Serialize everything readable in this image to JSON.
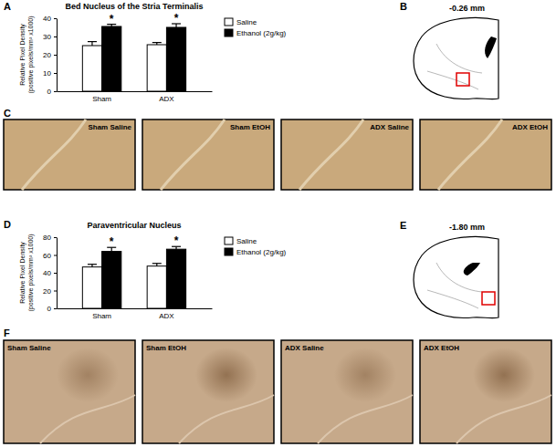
{
  "chart_data": [
    {
      "type": "bar",
      "title": "Bed Nucleus of the Stria Terminalis",
      "ylabel": [
        "Relative Pixel Density",
        "(positive pixels/mm² x1000)"
      ],
      "categories": [
        "Sham",
        "ADX"
      ],
      "series": [
        {
          "name": "Saline",
          "color": "#ffffff",
          "values": [
            25,
            25.5
          ],
          "errors": [
            2.2,
            1.2
          ]
        },
        {
          "name": "Ethanol (2g/kg)",
          "color": "#000000",
          "values": [
            35.5,
            35
          ],
          "errors": [
            1.2,
            2
          ]
        }
      ],
      "ylim": [
        0,
        40
      ],
      "yticks": [
        0,
        10,
        20,
        30,
        40
      ],
      "grid": false,
      "legend": "top right",
      "annotations": [
        {
          "text": "*",
          "category": "Sham",
          "series": "Ethanol (2g/kg)"
        },
        {
          "text": "*",
          "category": "ADX",
          "series": "Ethanol (2g/kg)"
        }
      ]
    },
    {
      "type": "bar",
      "title": "Paraventricular Nucleus",
      "ylabel": [
        "Relative Pixel Density",
        "(positive pixels/mm² x1000)"
      ],
      "categories": [
        "Sham",
        "ADX"
      ],
      "series": [
        {
          "name": "Saline",
          "color": "#ffffff",
          "values": [
            46.5,
            47.5
          ],
          "errors": [
            3,
            3
          ]
        },
        {
          "name": "Ethanol (2g/kg)",
          "color": "#000000",
          "values": [
            64,
            66.5
          ],
          "errors": [
            4.5,
            3
          ]
        }
      ],
      "ylim": [
        0,
        80
      ],
      "yticks": [
        0,
        20,
        40,
        60,
        80
      ],
      "grid": false,
      "legend": "top right",
      "annotations": [
        {
          "text": "*",
          "category": "Sham",
          "series": "Ethanol (2g/kg)"
        },
        {
          "text": "*",
          "category": "ADX",
          "series": "Ethanol (2g/kg)"
        }
      ]
    }
  ],
  "panel_letters": [
    "A",
    "B",
    "C",
    "D",
    "E",
    "F"
  ],
  "atlas": [
    {
      "label": "-0.26 mm"
    },
    {
      "label": "-1.80 mm"
    }
  ],
  "micrographs": [
    {
      "labels": [
        "Sham Saline",
        "Sham EtOH",
        "ADX Saline",
        "ADX EtOH"
      ]
    },
    {
      "labels": [
        "Sham Saline",
        "Sham EtOH",
        "ADX Saline",
        "ADX EtOH"
      ]
    }
  ]
}
